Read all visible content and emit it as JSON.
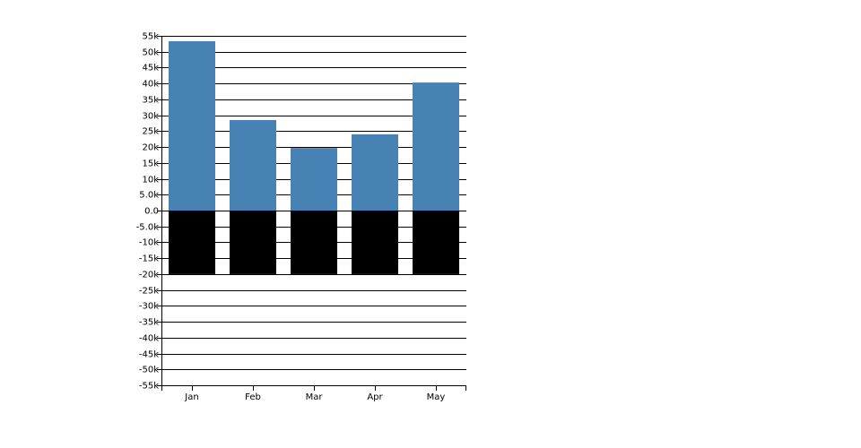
{
  "chart_data": {
    "type": "bar",
    "stacked": true,
    "categories": [
      "Jan",
      "Feb",
      "Mar",
      "Apr",
      "May"
    ],
    "series": [
      {
        "color": "#4682b4",
        "values": [
          53300,
          28500,
          19700,
          24000,
          40300
        ]
      },
      {
        "color": "#000000",
        "values": [
          -20000,
          -20000,
          -20000,
          -20000,
          -20000
        ]
      }
    ],
    "ylim": [
      -55000,
      55000
    ],
    "yticks": [
      {
        "value": -55000,
        "label": "-55k"
      },
      {
        "value": -50000,
        "label": "-50k"
      },
      {
        "value": -45000,
        "label": "-45k"
      },
      {
        "value": -40000,
        "label": "-40k"
      },
      {
        "value": -35000,
        "label": "-35k"
      },
      {
        "value": -30000,
        "label": "-30k"
      },
      {
        "value": -25000,
        "label": "-25k"
      },
      {
        "value": -20000,
        "label": "-20k"
      },
      {
        "value": -15000,
        "label": "-15k"
      },
      {
        "value": -10000,
        "label": "-10k"
      },
      {
        "value": -5000,
        "label": "-5.0k"
      },
      {
        "value": 0,
        "label": "0.0"
      },
      {
        "value": 5000,
        "label": "5.0k"
      },
      {
        "value": 10000,
        "label": "10k"
      },
      {
        "value": 15000,
        "label": "15k"
      },
      {
        "value": 20000,
        "label": "20k"
      },
      {
        "value": 25000,
        "label": "25k"
      },
      {
        "value": 30000,
        "label": "30k"
      },
      {
        "value": 35000,
        "label": "35k"
      },
      {
        "value": 40000,
        "label": "40k"
      },
      {
        "value": 45000,
        "label": "45k"
      },
      {
        "value": 50000,
        "label": "50k"
      },
      {
        "value": 55000,
        "label": "55k"
      }
    ],
    "grid": true
  }
}
